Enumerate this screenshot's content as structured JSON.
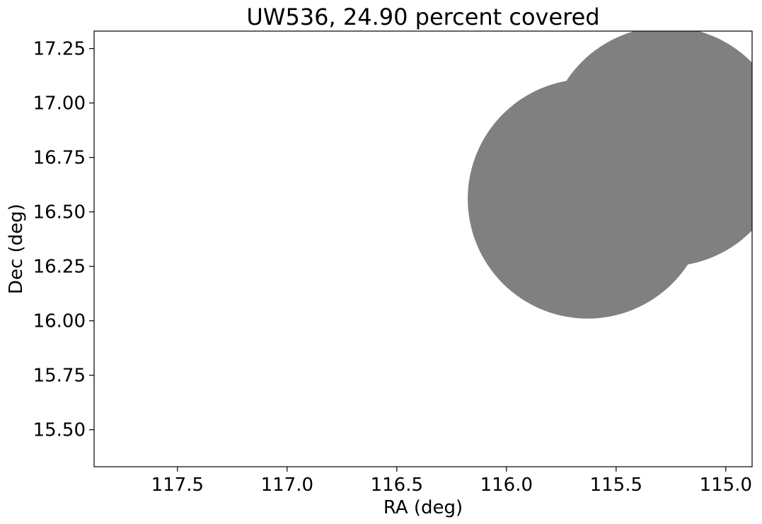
{
  "chart_data": {
    "type": "scatter",
    "title": "UW536, 24.90 percent covered",
    "xlabel": "RA (deg)",
    "ylabel": "Dec (deg)",
    "xlim": [
      117.88,
      114.88
    ],
    "ylim": [
      15.33,
      17.33
    ],
    "x_inverted": true,
    "xticks": [
      117.5,
      117.0,
      116.5,
      116.0,
      115.5,
      115.0
    ],
    "xtick_labels": [
      "117.5",
      "117.0",
      "116.5",
      "116.0",
      "115.5",
      "115.0"
    ],
    "yticks": [
      15.5,
      15.75,
      16.0,
      16.25,
      16.5,
      16.75,
      17.0,
      17.25
    ],
    "ytick_labels": [
      "15.50",
      "15.75",
      "16.00",
      "16.25",
      "16.50",
      "16.75",
      "17.00",
      "17.25"
    ],
    "grid": false,
    "fill_color": "#808080",
    "regions": [
      {
        "ra": 115.63,
        "dec": 16.56,
        "radius_deg": 0.55
      },
      {
        "ra": 115.27,
        "dec": 16.8,
        "radius_deg": 0.55
      }
    ]
  }
}
